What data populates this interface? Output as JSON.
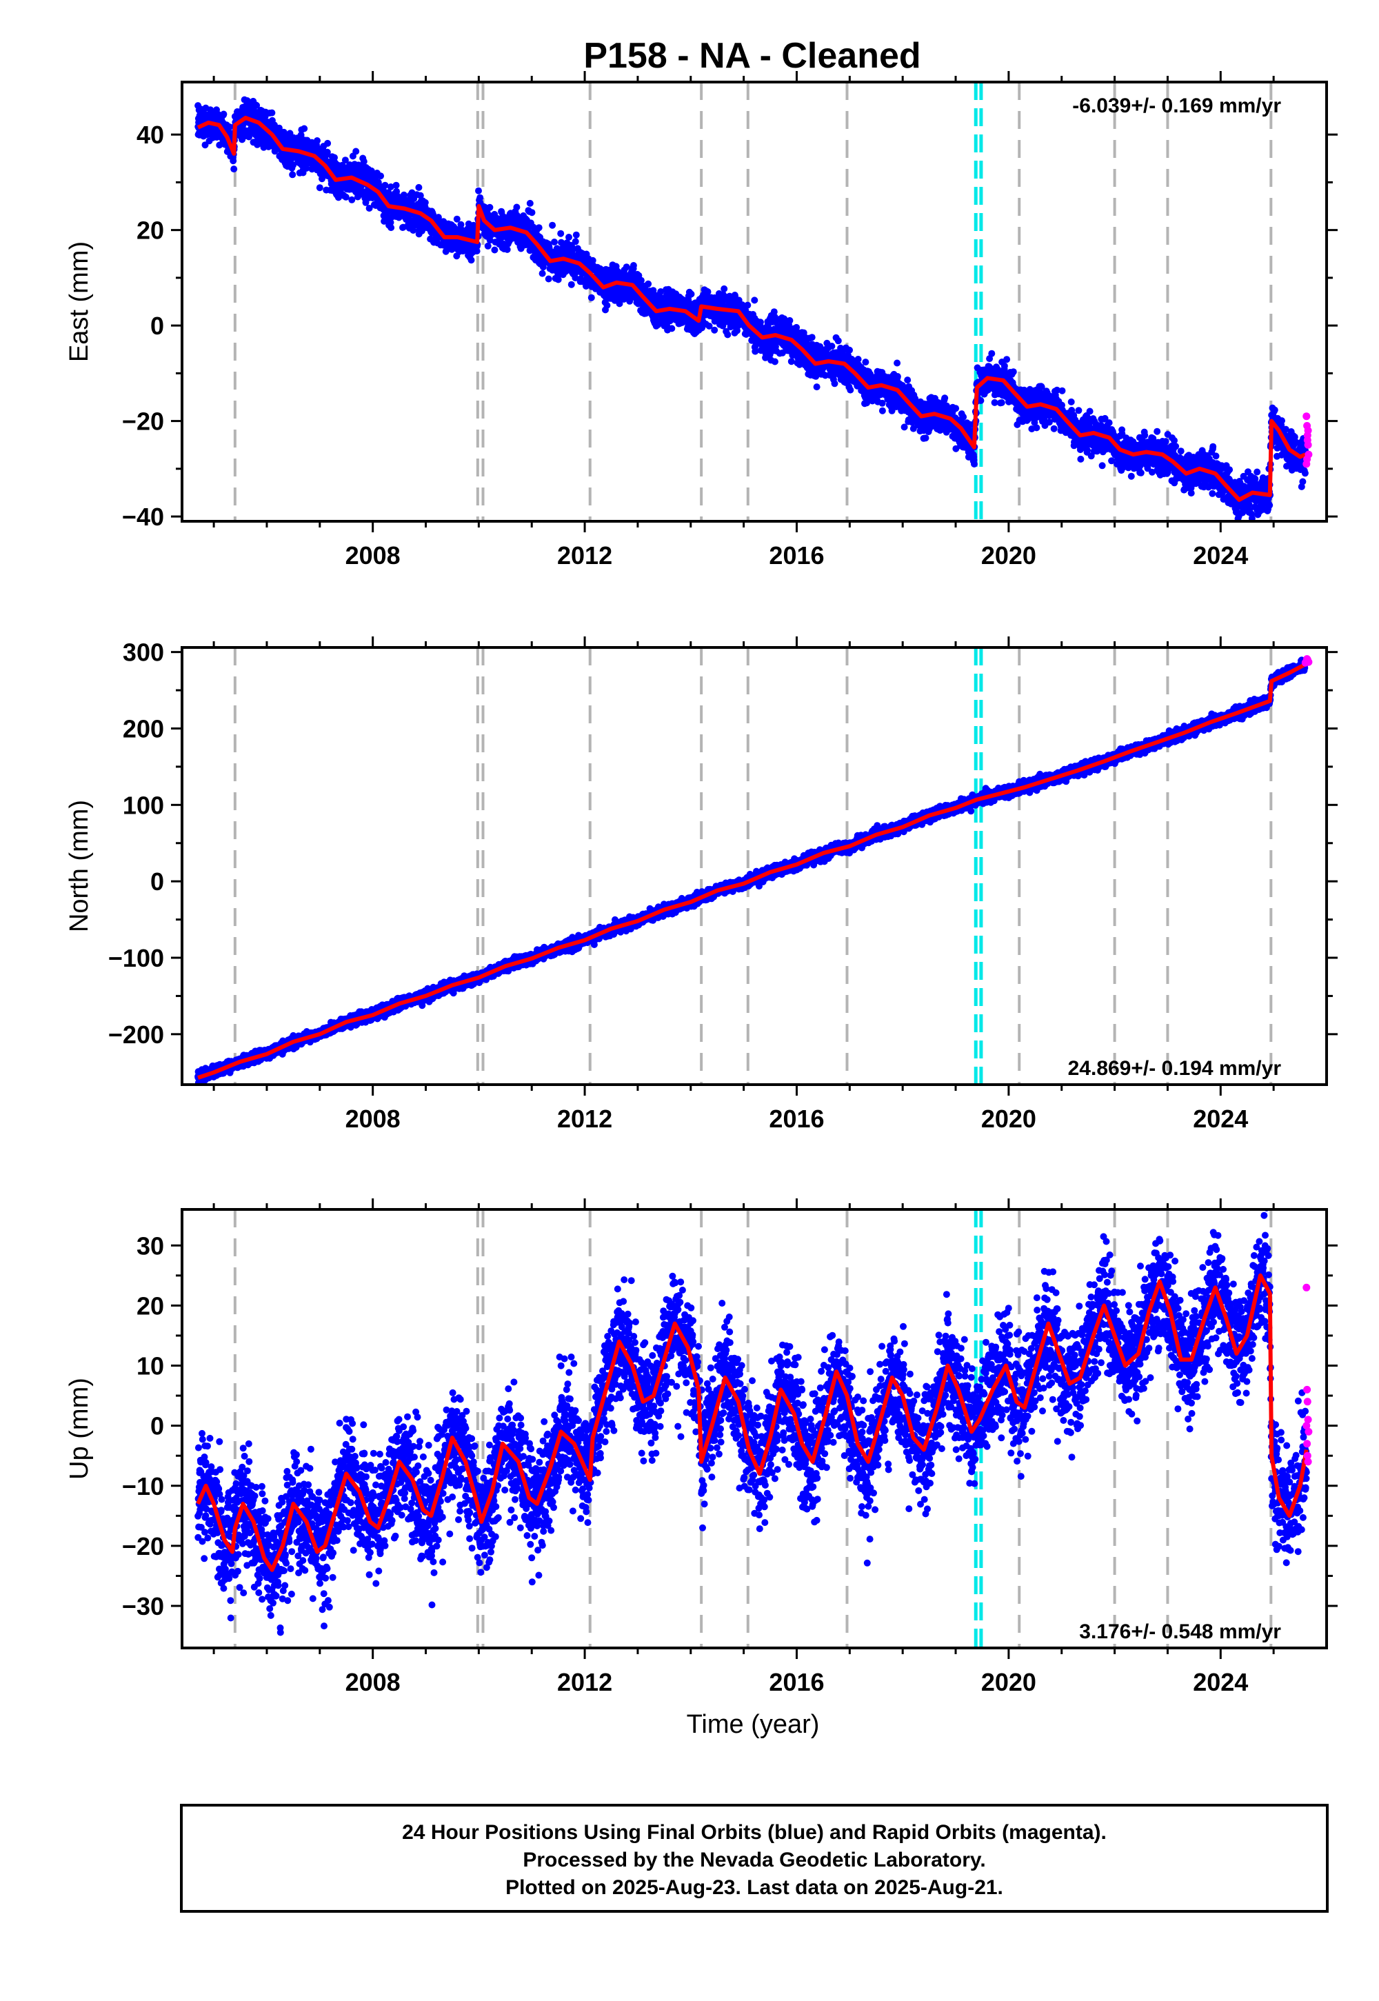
{
  "title": "P158  - NA - Cleaned",
  "colors": {
    "final": "#0000ff",
    "rapid": "#ff00ff",
    "model": "#ff0000",
    "event_gray": "#b4b4b4",
    "event_cyan": "#00e8e8"
  },
  "x_axis": {
    "range": [
      2004.4,
      2026.0
    ],
    "tick_labels": [
      "2008",
      "2012",
      "2016",
      "2020",
      "2024"
    ],
    "xlabel": "Time (year)",
    "gray_events": [
      2005.4,
      2009.98,
      2010.08,
      2012.1,
      2014.2,
      2015.08,
      2016.95,
      2020.2,
      2022.0,
      2023.0,
      2024.95
    ],
    "cyan_events": [
      2019.38,
      2019.48
    ]
  },
  "footer": {
    "line1": "24 Hour Positions Using Final Orbits (blue) and Rapid Orbits (magenta).",
    "line2": "Processed by the Nevada Geodetic Laboratory.",
    "line3": "Plotted on 2025-Aug-23. Last data on 2025-Aug-21."
  },
  "chart_data": [
    {
      "type": "scatter",
      "ylabel": "East (mm)",
      "ylim": [
        -41,
        51
      ],
      "yticks": [
        -40,
        -20,
        0,
        20,
        40
      ],
      "y_tick_labels": [
        "−40",
        "−20",
        "0",
        "20",
        "40"
      ],
      "rate_label": "-6.039+/- 0.169 mm/yr",
      "rate_position": "top-right",
      "model": [
        [
          2004.7,
          41.5
        ],
        [
          2004.9,
          42.5
        ],
        [
          2005.1,
          42
        ],
        [
          2005.25,
          39.5
        ],
        [
          2005.38,
          36
        ],
        [
          2005.4,
          42
        ],
        [
          2005.6,
          43.5
        ],
        [
          2005.85,
          42.5
        ],
        [
          2006.1,
          40
        ],
        [
          2006.3,
          37
        ],
        [
          2006.6,
          36.5
        ],
        [
          2006.9,
          35.5
        ],
        [
          2007.1,
          33.5
        ],
        [
          2007.3,
          30.5
        ],
        [
          2007.6,
          31
        ],
        [
          2007.9,
          29.5
        ],
        [
          2008.1,
          28
        ],
        [
          2008.3,
          25
        ],
        [
          2008.6,
          24.5
        ],
        [
          2008.9,
          23.5
        ],
        [
          2009.1,
          22
        ],
        [
          2009.35,
          18.5
        ],
        [
          2009.6,
          18.5
        ],
        [
          2009.97,
          17.5
        ],
        [
          2010.0,
          25
        ],
        [
          2010.1,
          22
        ],
        [
          2010.3,
          20
        ],
        [
          2010.6,
          20.5
        ],
        [
          2010.9,
          19.5
        ],
        [
          2011.1,
          17
        ],
        [
          2011.35,
          13.5
        ],
        [
          2011.6,
          14
        ],
        [
          2011.9,
          13
        ],
        [
          2012.1,
          11
        ],
        [
          2012.35,
          8
        ],
        [
          2012.6,
          9
        ],
        [
          2012.9,
          8.5
        ],
        [
          2013.1,
          6
        ],
        [
          2013.35,
          3
        ],
        [
          2013.6,
          3.5
        ],
        [
          2013.9,
          3
        ],
        [
          2014.15,
          1
        ],
        [
          2014.2,
          4
        ],
        [
          2014.5,
          3.5
        ],
        [
          2014.9,
          3
        ],
        [
          2015.1,
          0
        ],
        [
          2015.35,
          -2.5
        ],
        [
          2015.6,
          -2
        ],
        [
          2015.9,
          -3
        ],
        [
          2016.1,
          -5
        ],
        [
          2016.35,
          -8
        ],
        [
          2016.6,
          -7.5
        ],
        [
          2016.9,
          -8
        ],
        [
          2017.1,
          -10
        ],
        [
          2017.35,
          -13
        ],
        [
          2017.6,
          -12.5
        ],
        [
          2017.9,
          -13.5
        ],
        [
          2018.1,
          -16
        ],
        [
          2018.35,
          -19
        ],
        [
          2018.6,
          -18.5
        ],
        [
          2018.9,
          -19.5
        ],
        [
          2019.1,
          -21.5
        ],
        [
          2019.35,
          -25.5
        ],
        [
          2019.4,
          -13
        ],
        [
          2019.6,
          -11
        ],
        [
          2019.9,
          -11.5
        ],
        [
          2020.1,
          -14
        ],
        [
          2020.35,
          -17
        ],
        [
          2020.6,
          -16.5
        ],
        [
          2020.9,
          -17.5
        ],
        [
          2021.1,
          -20
        ],
        [
          2021.35,
          -23
        ],
        [
          2021.6,
          -22.5
        ],
        [
          2021.9,
          -23.5
        ],
        [
          2022.1,
          -26
        ],
        [
          2022.35,
          -27
        ],
        [
          2022.6,
          -26.5
        ],
        [
          2022.9,
          -27
        ],
        [
          2023.1,
          -28.5
        ],
        [
          2023.35,
          -31
        ],
        [
          2023.6,
          -30
        ],
        [
          2023.9,
          -31
        ],
        [
          2024.1,
          -33.5
        ],
        [
          2024.35,
          -36.5
        ],
        [
          2024.6,
          -35
        ],
        [
          2024.93,
          -35.5
        ],
        [
          2024.96,
          -20
        ],
        [
          2025.1,
          -22
        ],
        [
          2025.3,
          -26
        ],
        [
          2025.5,
          -27.5
        ],
        [
          2025.6,
          -27
        ]
      ],
      "rapid": [
        [
          2025.62,
          -19
        ],
        [
          2025.63,
          -21
        ],
        [
          2025.64,
          -23
        ],
        [
          2025.65,
          -25
        ],
        [
          2025.66,
          -27
        ],
        [
          2025.62,
          -29
        ],
        [
          2025.63,
          -28
        ],
        [
          2025.64,
          -24
        ],
        [
          2025.65,
          -22
        ]
      ]
    },
    {
      "type": "scatter",
      "ylabel": "North (mm)",
      "ylim": [
        -266,
        306
      ],
      "yticks": [
        -200,
        -100,
        0,
        100,
        200,
        300
      ],
      "y_tick_labels": [
        "−200",
        "−100",
        "0",
        "100",
        "200",
        "300"
      ],
      "rate_label": "24.869+/- 0.194 mm/yr",
      "rate_position": "bottom-right",
      "model": [
        [
          2004.7,
          -257
        ],
        [
          2005.0,
          -250
        ],
        [
          2005.5,
          -236
        ],
        [
          2006.0,
          -226
        ],
        [
          2006.5,
          -210
        ],
        [
          2007.0,
          -200
        ],
        [
          2007.5,
          -184
        ],
        [
          2008.0,
          -175
        ],
        [
          2008.5,
          -160
        ],
        [
          2009.0,
          -150
        ],
        [
          2009.5,
          -136
        ],
        [
          2010.0,
          -126
        ],
        [
          2010.5,
          -111
        ],
        [
          2011.0,
          -101
        ],
        [
          2011.5,
          -87
        ],
        [
          2012.0,
          -77
        ],
        [
          2012.5,
          -62
        ],
        [
          2013.0,
          -52
        ],
        [
          2013.5,
          -37
        ],
        [
          2014.0,
          -27
        ],
        [
          2014.5,
          -12
        ],
        [
          2015.0,
          -3
        ],
        [
          2015.5,
          12
        ],
        [
          2016.0,
          22
        ],
        [
          2016.5,
          37
        ],
        [
          2017.0,
          46
        ],
        [
          2017.5,
          61
        ],
        [
          2018.0,
          71
        ],
        [
          2018.5,
          86
        ],
        [
          2019.0,
          96
        ],
        [
          2019.4,
          107
        ],
        [
          2019.8,
          114
        ],
        [
          2020.3,
          123
        ],
        [
          2020.8,
          134
        ],
        [
          2021.3,
          145
        ],
        [
          2021.8,
          157
        ],
        [
          2022.3,
          170
        ],
        [
          2022.8,
          182
        ],
        [
          2023.3,
          194
        ],
        [
          2023.8,
          208
        ],
        [
          2024.3,
          220
        ],
        [
          2024.93,
          236
        ],
        [
          2024.96,
          262
        ],
        [
          2025.3,
          273
        ],
        [
          2025.6,
          284
        ]
      ],
      "rapid": [
        [
          2025.6,
          286
        ],
        [
          2025.62,
          288
        ],
        [
          2025.64,
          290
        ],
        [
          2025.66,
          287
        ],
        [
          2025.63,
          291
        ]
      ]
    },
    {
      "type": "scatter",
      "ylabel": "Up (mm)",
      "ylim": [
        -37,
        36
      ],
      "yticks": [
        -30,
        -20,
        -10,
        0,
        10,
        20,
        30
      ],
      "y_tick_labels": [
        "−30",
        "−20",
        "−10",
        "0",
        "10",
        "20",
        "30"
      ],
      "rate_label": "3.176+/- 0.548 mm/yr",
      "rate_position": "bottom-right",
      "model": [
        [
          2004.7,
          -13
        ],
        [
          2004.85,
          -10
        ],
        [
          2005.0,
          -13
        ],
        [
          2005.2,
          -19
        ],
        [
          2005.35,
          -21
        ],
        [
          2005.4,
          -17
        ],
        [
          2005.55,
          -13
        ],
        [
          2005.75,
          -16
        ],
        [
          2005.95,
          -22
        ],
        [
          2006.1,
          -24
        ],
        [
          2006.3,
          -20
        ],
        [
          2006.5,
          -13
        ],
        [
          2006.75,
          -16
        ],
        [
          2006.95,
          -21
        ],
        [
          2007.1,
          -20
        ],
        [
          2007.3,
          -14
        ],
        [
          2007.5,
          -8
        ],
        [
          2007.75,
          -11
        ],
        [
          2007.95,
          -16
        ],
        [
          2008.1,
          -17
        ],
        [
          2008.3,
          -12
        ],
        [
          2008.5,
          -6
        ],
        [
          2008.75,
          -9
        ],
        [
          2008.95,
          -14
        ],
        [
          2009.1,
          -15
        ],
        [
          2009.3,
          -9
        ],
        [
          2009.5,
          -2
        ],
        [
          2009.75,
          -6
        ],
        [
          2009.97,
          -13
        ],
        [
          2010.05,
          -16
        ],
        [
          2010.25,
          -11
        ],
        [
          2010.45,
          -3
        ],
        [
          2010.75,
          -6
        ],
        [
          2010.95,
          -12
        ],
        [
          2011.1,
          -13
        ],
        [
          2011.35,
          -7
        ],
        [
          2011.55,
          -1
        ],
        [
          2011.8,
          -3
        ],
        [
          2012.05,
          -8
        ],
        [
          2012.1,
          -9
        ],
        [
          2012.15,
          -2
        ],
        [
          2012.4,
          6
        ],
        [
          2012.65,
          14
        ],
        [
          2012.9,
          10
        ],
        [
          2013.1,
          4
        ],
        [
          2013.3,
          5
        ],
        [
          2013.5,
          11
        ],
        [
          2013.7,
          17
        ],
        [
          2013.95,
          13
        ],
        [
          2014.15,
          6
        ],
        [
          2014.2,
          -6
        ],
        [
          2014.4,
          0
        ],
        [
          2014.65,
          8
        ],
        [
          2014.9,
          4
        ],
        [
          2015.1,
          -4
        ],
        [
          2015.3,
          -8
        ],
        [
          2015.5,
          -2
        ],
        [
          2015.7,
          6
        ],
        [
          2015.95,
          2
        ],
        [
          2016.1,
          -3
        ],
        [
          2016.3,
          -6
        ],
        [
          2016.55,
          2
        ],
        [
          2016.75,
          9
        ],
        [
          2016.95,
          5
        ],
        [
          2017.15,
          -3
        ],
        [
          2017.35,
          -6
        ],
        [
          2017.55,
          0
        ],
        [
          2017.8,
          8
        ],
        [
          2018.0,
          5
        ],
        [
          2018.2,
          -2
        ],
        [
          2018.4,
          -4
        ],
        [
          2018.65,
          3
        ],
        [
          2018.85,
          10
        ],
        [
          2019.05,
          6
        ],
        [
          2019.3,
          -1
        ],
        [
          2019.45,
          1
        ],
        [
          2019.7,
          6
        ],
        [
          2019.95,
          10
        ],
        [
          2020.15,
          4
        ],
        [
          2020.3,
          3
        ],
        [
          2020.55,
          11
        ],
        [
          2020.75,
          17
        ],
        [
          2020.95,
          12
        ],
        [
          2021.15,
          7
        ],
        [
          2021.35,
          8
        ],
        [
          2021.6,
          15
        ],
        [
          2021.8,
          20
        ],
        [
          2022.0,
          15
        ],
        [
          2022.2,
          10
        ],
        [
          2022.45,
          12
        ],
        [
          2022.65,
          19
        ],
        [
          2022.85,
          24
        ],
        [
          2023.05,
          19
        ],
        [
          2023.25,
          11
        ],
        [
          2023.45,
          11
        ],
        [
          2023.7,
          18
        ],
        [
          2023.9,
          23
        ],
        [
          2024.1,
          18
        ],
        [
          2024.3,
          12
        ],
        [
          2024.5,
          15
        ],
        [
          2024.75,
          25
        ],
        [
          2024.93,
          22
        ],
        [
          2024.96,
          -5
        ],
        [
          2025.1,
          -12
        ],
        [
          2025.3,
          -15
        ],
        [
          2025.5,
          -10
        ],
        [
          2025.62,
          -4
        ]
      ],
      "rapid": [
        [
          2025.62,
          23
        ],
        [
          2025.63,
          6
        ],
        [
          2025.64,
          4
        ],
        [
          2025.65,
          1
        ],
        [
          2025.66,
          -1
        ],
        [
          2025.63,
          -3
        ],
        [
          2025.64,
          -5
        ],
        [
          2025.65,
          -6
        ],
        [
          2025.62,
          0
        ]
      ]
    }
  ]
}
